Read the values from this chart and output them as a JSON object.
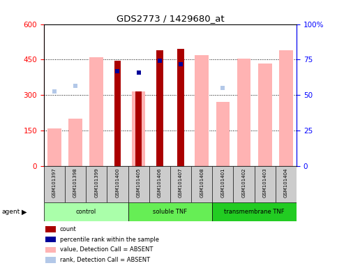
{
  "title": "GDS2773 / 1429680_at",
  "samples": [
    "GSM101397",
    "GSM101398",
    "GSM101399",
    "GSM101400",
    "GSM101405",
    "GSM101406",
    "GSM101407",
    "GSM101408",
    "GSM101401",
    "GSM101402",
    "GSM101403",
    "GSM101404"
  ],
  "groups": [
    {
      "name": "control",
      "start": 0,
      "end": 4,
      "color": "#AAFFAA"
    },
    {
      "name": "soluble TNF",
      "start": 4,
      "end": 8,
      "color": "#55EE55"
    },
    {
      "name": "transmembrane TNF",
      "start": 8,
      "end": 12,
      "color": "#22CC22"
    }
  ],
  "value_absent": [
    160,
    200,
    460,
    null,
    315,
    null,
    null,
    470,
    270,
    455,
    435,
    490
  ],
  "rank_absent_y": [
    315,
    340,
    null,
    null,
    null,
    null,
    null,
    null,
    330,
    null,
    null,
    null
  ],
  "count": [
    null,
    null,
    null,
    445,
    315,
    490,
    495,
    null,
    null,
    null,
    null,
    null
  ],
  "percentile_rank_pct": [
    null,
    null,
    null,
    67,
    66,
    74,
    72,
    null,
    null,
    null,
    null,
    null
  ],
  "ylim": [
    0,
    600
  ],
  "ylim_right": [
    0,
    100
  ],
  "yticks_left": [
    0,
    150,
    300,
    450,
    600
  ],
  "yticks_right": [
    0,
    25,
    50,
    75,
    100
  ],
  "count_color": "#AA0000",
  "percentile_color": "#000099",
  "value_absent_color": "#FFB3B3",
  "rank_absent_color": "#B3C8E8"
}
